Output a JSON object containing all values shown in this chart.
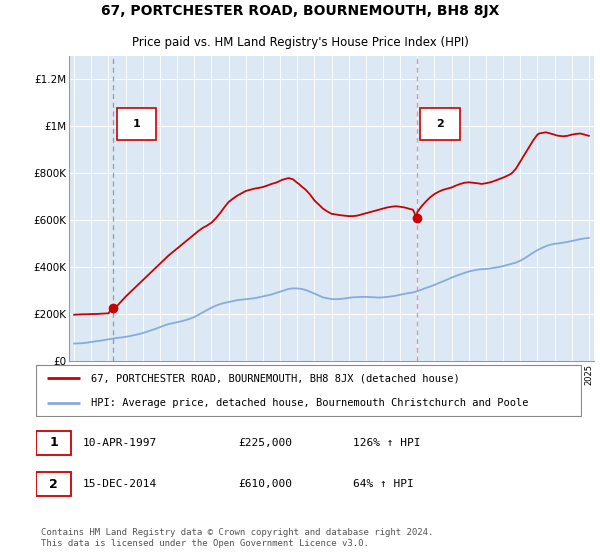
{
  "title": "67, PORTCHESTER ROAD, BOURNEMOUTH, BH8 8JX",
  "subtitle": "Price paid vs. HM Land Registry's House Price Index (HPI)",
  "ylabel_ticks": [
    "£0",
    "£200K",
    "£400K",
    "£600K",
    "£800K",
    "£1M",
    "£1.2M"
  ],
  "ytick_values": [
    0,
    200000,
    400000,
    600000,
    800000,
    1000000,
    1200000
  ],
  "ylim": [
    0,
    1300000
  ],
  "xlim_start": 1994.7,
  "xlim_end": 2025.3,
  "background_color": "#dce9f5",
  "grid_color": "#ffffff",
  "sale1_x": 1997.27,
  "sale1_y": 225000,
  "sale2_x": 2014.96,
  "sale2_y": 610000,
  "sale_color": "#cc0000",
  "hpi_color": "#88aadd",
  "vline1_color": "#aaaaaa",
  "vline2_color": "#ff8888",
  "legend_line1": "67, PORTCHESTER ROAD, BOURNEMOUTH, BH8 8JX (detached house)",
  "legend_line2": "HPI: Average price, detached house, Bournemouth Christchurch and Poole",
  "table_row1": [
    "1",
    "10-APR-1997",
    "£225,000",
    "126% ↑ HPI"
  ],
  "table_row2": [
    "2",
    "15-DEC-2014",
    "£610,000",
    "64% ↑ HPI"
  ],
  "footer": "Contains HM Land Registry data © Crown copyright and database right 2024.\nThis data is licensed under the Open Government Licence v3.0.",
  "title_fontsize": 10,
  "subtitle_fontsize": 8.5,
  "tick_fontsize": 7.5,
  "legend_fontsize": 7.5,
  "table_fontsize": 8,
  "footer_fontsize": 6.5,
  "hpi_years": [
    1995,
    1995.25,
    1995.5,
    1995.75,
    1996,
    1996.25,
    1996.5,
    1996.75,
    1997,
    1997.25,
    1997.5,
    1997.75,
    1998,
    1998.25,
    1998.5,
    1998.75,
    1999,
    1999.25,
    1999.5,
    1999.75,
    2000,
    2000.25,
    2000.5,
    2000.75,
    2001,
    2001.25,
    2001.5,
    2001.75,
    2002,
    2002.25,
    2002.5,
    2002.75,
    2003,
    2003.25,
    2003.5,
    2003.75,
    2004,
    2004.25,
    2004.5,
    2004.75,
    2005,
    2005.25,
    2005.5,
    2005.75,
    2006,
    2006.25,
    2006.5,
    2006.75,
    2007,
    2007.25,
    2007.5,
    2007.75,
    2008,
    2008.25,
    2008.5,
    2008.75,
    2009,
    2009.25,
    2009.5,
    2009.75,
    2010,
    2010.25,
    2010.5,
    2010.75,
    2011,
    2011.25,
    2011.5,
    2011.75,
    2012,
    2012.25,
    2012.5,
    2012.75,
    2013,
    2013.25,
    2013.5,
    2013.75,
    2014,
    2014.25,
    2014.5,
    2014.75,
    2015,
    2015.25,
    2015.5,
    2015.75,
    2016,
    2016.25,
    2016.5,
    2016.75,
    2017,
    2017.25,
    2017.5,
    2017.75,
    2018,
    2018.25,
    2018.5,
    2018.75,
    2019,
    2019.25,
    2019.5,
    2019.75,
    2020,
    2020.25,
    2020.5,
    2020.75,
    2021,
    2021.25,
    2021.5,
    2021.75,
    2022,
    2022.25,
    2022.5,
    2022.75,
    2023,
    2023.25,
    2023.5,
    2023.75,
    2024,
    2024.25,
    2024.5,
    2024.75,
    2025
  ],
  "hpi_vals": [
    75000,
    76000,
    77000,
    79000,
    82000,
    85000,
    87000,
    90000,
    93000,
    96000,
    99000,
    101000,
    104000,
    107000,
    111000,
    115000,
    120000,
    126000,
    132000,
    138000,
    145000,
    152000,
    158000,
    162000,
    166000,
    170000,
    175000,
    181000,
    188000,
    198000,
    208000,
    218000,
    228000,
    236000,
    243000,
    248000,
    252000,
    256000,
    260000,
    262000,
    264000,
    266000,
    268000,
    272000,
    276000,
    280000,
    284000,
    290000,
    296000,
    302000,
    308000,
    310000,
    310000,
    308000,
    303000,
    296000,
    288000,
    280000,
    272000,
    268000,
    265000,
    264000,
    265000,
    267000,
    270000,
    272000,
    273000,
    274000,
    274000,
    273000,
    272000,
    271000,
    272000,
    274000,
    276000,
    279000,
    283000,
    287000,
    290000,
    293000,
    298000,
    305000,
    312000,
    318000,
    325000,
    333000,
    340000,
    348000,
    356000,
    363000,
    370000,
    376000,
    382000,
    386000,
    390000,
    392000,
    393000,
    395000,
    398000,
    401000,
    405000,
    410000,
    415000,
    420000,
    428000,
    438000,
    450000,
    462000,
    473000,
    482000,
    490000,
    496000,
    500000,
    502000,
    505000,
    508000,
    512000,
    516000,
    520000,
    523000,
    525000
  ],
  "red_years": [
    1995,
    1995.25,
    1995.5,
    1995.75,
    1996,
    1996.25,
    1996.5,
    1996.75,
    1997.0,
    1997.1,
    1997.27,
    1997.5,
    1997.75,
    1998,
    1998.5,
    1999,
    1999.5,
    2000,
    2000.5,
    2001,
    2001.5,
    2002,
    2002.25,
    2002.5,
    2002.75,
    2003,
    2003.25,
    2003.5,
    2003.75,
    2004,
    2004.25,
    2004.5,
    2004.75,
    2005,
    2005.25,
    2005.5,
    2005.75,
    2006,
    2006.25,
    2006.5,
    2006.75,
    2007,
    2007.1,
    2007.25,
    2007.4,
    2007.5,
    2007.75,
    2008,
    2008.1,
    2008.25,
    2008.5,
    2008.75,
    2009,
    2009.25,
    2009.5,
    2009.75,
    2010,
    2010.25,
    2010.5,
    2010.75,
    2011,
    2011.25,
    2011.5,
    2011.75,
    2012,
    2012.25,
    2012.5,
    2012.75,
    2013,
    2013.25,
    2013.5,
    2013.75,
    2014,
    2014.25,
    2014.5,
    2014.75,
    2014.96,
    2015,
    2015.25,
    2015.5,
    2015.75,
    2016,
    2016.25,
    2016.5,
    2016.75,
    2017,
    2017.25,
    2017.5,
    2017.75,
    2018,
    2018.25,
    2018.5,
    2018.75,
    2019,
    2019.25,
    2019.5,
    2019.75,
    2020,
    2020.25,
    2020.5,
    2020.75,
    2021,
    2021.25,
    2021.5,
    2021.75,
    2022,
    2022.1,
    2022.25,
    2022.5,
    2022.75,
    2023,
    2023.1,
    2023.25,
    2023.5,
    2023.75,
    2024,
    2024.25,
    2024.5,
    2024.75,
    2025
  ],
  "red_vals": [
    198000,
    199000,
    200000,
    200000,
    201000,
    201000,
    202000,
    203000,
    204000,
    215000,
    225000,
    235000,
    255000,
    275000,
    310000,
    345000,
    380000,
    415000,
    450000,
    480000,
    510000,
    540000,
    555000,
    568000,
    578000,
    590000,
    608000,
    630000,
    655000,
    678000,
    692000,
    705000,
    715000,
    725000,
    730000,
    735000,
    738000,
    742000,
    748000,
    755000,
    760000,
    768000,
    772000,
    775000,
    778000,
    780000,
    775000,
    760000,
    755000,
    745000,
    730000,
    710000,
    685000,
    668000,
    650000,
    638000,
    628000,
    625000,
    622000,
    620000,
    618000,
    618000,
    620000,
    625000,
    630000,
    635000,
    640000,
    645000,
    650000,
    655000,
    658000,
    660000,
    658000,
    655000,
    650000,
    645000,
    610000,
    635000,
    660000,
    680000,
    698000,
    712000,
    722000,
    730000,
    735000,
    740000,
    748000,
    755000,
    760000,
    762000,
    760000,
    758000,
    755000,
    758000,
    762000,
    768000,
    775000,
    782000,
    790000,
    800000,
    820000,
    850000,
    880000,
    910000,
    940000,
    965000,
    970000,
    972000,
    975000,
    970000,
    965000,
    962000,
    960000,
    958000,
    960000,
    965000,
    968000,
    970000,
    965000,
    960000
  ]
}
